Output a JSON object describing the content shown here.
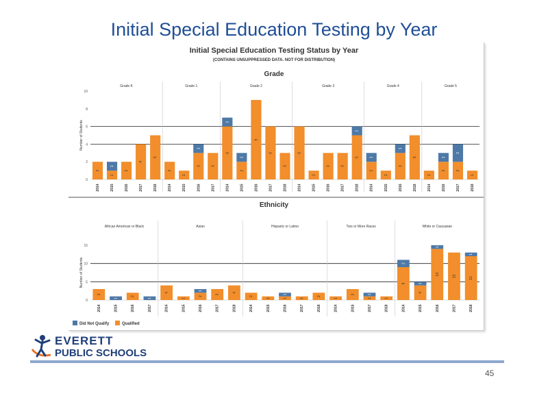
{
  "slide": {
    "title": "Initial Special Education Testing by Year",
    "page_number": "45",
    "logo": {
      "line1": "EVERETT",
      "line2": "PUBLIC SCHOOLS"
    }
  },
  "colors": {
    "qualified": "#f28e2b",
    "not_qualified": "#4e79a7",
    "brand_blue": "#1f4e96"
  },
  "chart_data": [
    {
      "type": "bar",
      "stacked": true,
      "title": "Initial Special Education Testing Status by Year",
      "subtitle": "(CONTAINS UNSUPPRESSED DATA. NOT FOR DISTRIBUTION)",
      "facet_title": "Grade",
      "ylabel": "Number of Students",
      "ylim": [
        0,
        10
      ],
      "yticks": [
        0,
        2,
        4,
        6,
        8,
        10
      ],
      "reference_lines": [
        4,
        6
      ],
      "groups": [
        {
          "label": "Grade K",
          "categories": [
            "2014",
            "2015",
            "2016",
            "2017",
            "2018"
          ],
          "qualified": [
            2,
            1,
            2,
            4,
            5
          ],
          "not_qualified": [
            0,
            1,
            0,
            0,
            0
          ]
        },
        {
          "label": "Grade 1",
          "categories": [
            "2014",
            "2015",
            "2016",
            "2017"
          ],
          "qualified": [
            2,
            1,
            3,
            3
          ],
          "not_qualified": [
            0,
            0,
            1,
            0
          ]
        },
        {
          "label": "Grade 2",
          "categories": [
            "2014",
            "2015",
            "2016",
            "2017",
            "2018"
          ],
          "qualified": [
            6,
            2,
            9,
            6,
            3
          ],
          "not_qualified": [
            1,
            1,
            0,
            0,
            0
          ]
        },
        {
          "label": "Grade 3",
          "categories": [
            "2014",
            "2015",
            "2016",
            "2017",
            "2018"
          ],
          "qualified": [
            6,
            1,
            3,
            3,
            5
          ],
          "not_qualified": [
            0,
            0,
            0,
            0,
            1
          ]
        },
        {
          "label": "Grade 4",
          "categories": [
            "2014",
            "2015",
            "2016",
            "2018"
          ],
          "qualified": [
            2,
            1,
            3,
            5
          ],
          "not_qualified": [
            1,
            0,
            1,
            0
          ]
        },
        {
          "label": "Grade 5",
          "categories": [
            "2014",
            "2016",
            "2017",
            "2018"
          ],
          "qualified": [
            1,
            2,
            2,
            1
          ],
          "not_qualified": [
            0,
            1,
            2,
            0
          ]
        }
      ]
    },
    {
      "type": "bar",
      "stacked": true,
      "facet_title": "Ethnicity",
      "ylabel": "Number of Students",
      "ylim": [
        0,
        15
      ],
      "yticks": [
        0,
        5,
        10,
        15
      ],
      "reference_lines": [
        5,
        10
      ],
      "groups": [
        {
          "label": "African American or Black",
          "categories": [
            "2014",
            "2015",
            "2016",
            "2017"
          ],
          "qualified": [
            3,
            0,
            2,
            0
          ],
          "not_qualified": [
            0,
            1,
            0,
            1
          ]
        },
        {
          "label": "Asian",
          "categories": [
            "2014",
            "2015",
            "2016",
            "2017",
            "2018"
          ],
          "qualified": [
            4,
            1,
            2,
            3,
            4
          ],
          "not_qualified": [
            0,
            0,
            1,
            0,
            0
          ]
        },
        {
          "label": "Hispanic or Latino",
          "categories": [
            "2014",
            "2015",
            "2016",
            "2017",
            "2018"
          ],
          "qualified": [
            2,
            1,
            1,
            1,
            2
          ],
          "not_qualified": [
            0,
            0,
            1,
            0,
            0
          ]
        },
        {
          "label": "Two or More Races",
          "categories": [
            "2014",
            "2015",
            "2017",
            "2018"
          ],
          "qualified": [
            1,
            3,
            1,
            1
          ],
          "not_qualified": [
            0,
            0,
            1,
            0
          ]
        },
        {
          "label": "White or Caucasian",
          "categories": [
            "2014",
            "2015",
            "2016",
            "2017",
            "2018"
          ],
          "qualified": [
            9,
            4,
            14,
            13,
            12
          ],
          "not_qualified": [
            2,
            1,
            1,
            0,
            1
          ]
        }
      ]
    }
  ],
  "legend": {
    "position": "bottom-left",
    "items": [
      {
        "label": "Did Not Qualify",
        "color": "#4e79a7"
      },
      {
        "label": "Qualified",
        "color": "#f28e2b"
      }
    ]
  }
}
